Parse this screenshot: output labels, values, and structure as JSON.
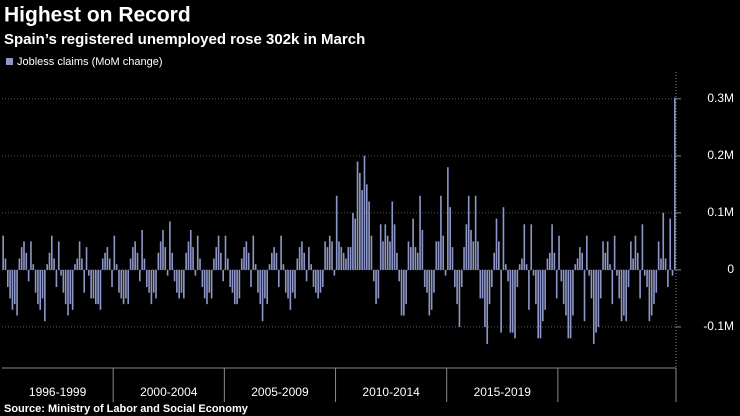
{
  "chart_data": {
    "type": "bar",
    "title": "Highest on Record",
    "subtitle": "Spain’s registered unemployed rose 302k in March",
    "legend": "Jobless claims (MoM change)",
    "color": "#8d96c7",
    "source": "Source: Ministry of Labor and Social Economy",
    "period_labels": [
      "1996-1999",
      "2000-2004",
      "2005-2009",
      "2010-2014",
      "2015-2019"
    ],
    "ylim": [
      -0.172,
      0.347
    ],
    "yticks": [
      {
        "value": -0.1,
        "label": "-0.1M"
      },
      0,
      {
        "value": 0.1,
        "label": "0.1M"
      },
      {
        "value": 0.2,
        "label": "0.2M"
      },
      {
        "value": 0.3,
        "label": "0.3M"
      }
    ],
    "grid": true,
    "values": [
      0.06,
      0.02,
      -0.03,
      -0.05,
      -0.07,
      -0.06,
      -0.08,
      0.02,
      0.04,
      0.05,
      0.03,
      -0.02,
      0.05,
      0.01,
      -0.04,
      -0.06,
      -0.07,
      -0.05,
      -0.09,
      0.01,
      0.03,
      0.06,
      0.02,
      -0.03,
      0.05,
      -0.01,
      -0.04,
      -0.06,
      -0.08,
      -0.06,
      -0.07,
      0.01,
      0.02,
      0.05,
      0.02,
      -0.04,
      0.04,
      -0.01,
      -0.05,
      -0.05,
      -0.06,
      -0.06,
      -0.07,
      0.02,
      0.03,
      0.04,
      0.02,
      -0.03,
      0.06,
      0.01,
      -0.04,
      -0.05,
      -0.06,
      -0.05,
      -0.06,
      0.02,
      0.04,
      0.05,
      0.03,
      -0.02,
      0.07,
      0.02,
      -0.03,
      -0.04,
      -0.06,
      -0.04,
      -0.05,
      0.03,
      0.05,
      0.07,
      0.04,
      -0.01,
      0.085,
      0.03,
      -0.02,
      -0.04,
      -0.05,
      -0.04,
      -0.05,
      0.03,
      0.05,
      0.07,
      0.04,
      -0.01,
      0.06,
      0.02,
      -0.03,
      -0.05,
      -0.06,
      -0.04,
      -0.05,
      0.02,
      0.04,
      0.06,
      0.03,
      -0.02,
      0.06,
      0.02,
      -0.03,
      -0.04,
      -0.06,
      -0.06,
      -0.05,
      0.02,
      0.04,
      0.05,
      0.03,
      -0.03,
      0.06,
      0.01,
      -0.04,
      -0.06,
      -0.09,
      -0.05,
      -0.06,
      0.01,
      0.03,
      0.04,
      0.03,
      -0.03,
      0.06,
      0.01,
      -0.04,
      -0.05,
      -0.07,
      -0.04,
      -0.05,
      0.02,
      0.04,
      0.05,
      0.03,
      -0.02,
      0.04,
      0.01,
      -0.03,
      -0.04,
      -0.05,
      -0.04,
      -0.03,
      0.05,
      0.04,
      0.06,
      0.05,
      -0.01,
      0.13,
      0.05,
      0.04,
      0.03,
      0.02,
      0.04,
      0.04,
      0.1,
      0.09,
      0.19,
      0.17,
      0.14,
      0.2,
      0.15,
      0.12,
      0.06,
      -0.02,
      -0.06,
      -0.05,
      0.08,
      0.05,
      0.08,
      0.06,
      0.05,
      0.12,
      0.08,
      0.03,
      -0.02,
      -0.08,
      -0.08,
      -0.06,
      0.05,
      0.04,
      0.09,
      0.04,
      0.03,
      0.13,
      0.07,
      -0.03,
      -0.04,
      -0.08,
      -0.07,
      -0.04,
      0.05,
      0.05,
      0.13,
      0.06,
      -0.01,
      0.18,
      0.11,
      0.04,
      -0.03,
      -0.06,
      -0.1,
      -0.03,
      0.04,
      0.08,
      0.13,
      0.07,
      0.05,
      0.13,
      0.05,
      -0.05,
      -0.05,
      -0.1,
      -0.13,
      -0.06,
      -0.03,
      0.03,
      0.09,
      0.05,
      -0.11,
      0.11,
      0.01,
      -0.02,
      -0.11,
      -0.11,
      -0.12,
      -0.03,
      0.01,
      0.02,
      0.08,
      0.01,
      -0.07,
      0.08,
      -0.01,
      -0.06,
      -0.12,
      -0.12,
      -0.09,
      -0.07,
      0.02,
      0.03,
      0.08,
      0.03,
      -0.05,
      0.06,
      -0.02,
      -0.06,
      -0.08,
      -0.12,
      -0.12,
      -0.08,
      0.01,
      0.02,
      0.04,
      0.03,
      -0.09,
      0.06,
      -0.01,
      -0.05,
      -0.13,
      -0.11,
      -0.1,
      -0.05,
      0.05,
      0.03,
      0.05,
      0.01,
      -0.06,
      0.06,
      -0.01,
      -0.05,
      -0.09,
      -0.08,
      -0.09,
      -0.03,
      0.05,
      0.02,
      0.06,
      0.03,
      -0.05,
      0.08,
      -0.01,
      -0.03,
      -0.09,
      -0.08,
      -0.06,
      -0.04,
      0.05,
      0.02,
      0.1,
      0.02,
      -0.03,
      0.09,
      -0.01,
      0.302
    ]
  }
}
